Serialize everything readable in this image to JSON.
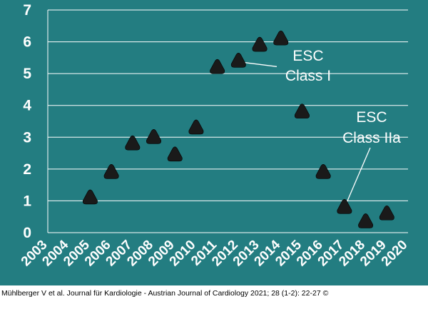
{
  "chart_data": {
    "type": "scatter",
    "x": [
      2005,
      2006,
      2007,
      2008,
      2009,
      2010,
      2011,
      2012,
      2013,
      2014,
      2015,
      2016,
      2017,
      2018,
      2019
    ],
    "y": [
      1.1,
      1.9,
      2.8,
      3.0,
      2.45,
      3.3,
      5.2,
      5.4,
      5.9,
      6.1,
      3.8,
      1.9,
      0.8,
      0.35,
      0.6
    ],
    "x_ticks": [
      "2003",
      "2004",
      "2005",
      "2006",
      "2007",
      "2008",
      "2009",
      "2010",
      "2011",
      "2012",
      "2013",
      "2014",
      "2015",
      "2016",
      "2017",
      "2018",
      "2019",
      "2020"
    ],
    "y_ticks": [
      "0",
      "1",
      "2",
      "3",
      "4",
      "5",
      "6",
      "7"
    ],
    "xlim": [
      2003,
      2020
    ],
    "ylim": [
      0,
      7
    ],
    "grid": true,
    "marker": "rounded-triangle",
    "annotations": [
      {
        "lines": [
          "ESC",
          "Class  I"
        ],
        "x": 2012,
        "y": 5.4
      },
      {
        "lines": [
          "ESC",
          "Class IIa"
        ],
        "x": 2017,
        "y": 0.8
      }
    ],
    "colors": {
      "background": "#237d81",
      "grid": "#ffffff",
      "marker": "#1a1a1a",
      "text": "#ffffff"
    }
  },
  "caption": "Mühlberger V et al. Journal für Kardiologie - Austrian Journal of Cardiology 2021; 28 (1-2): 22-27 ©"
}
